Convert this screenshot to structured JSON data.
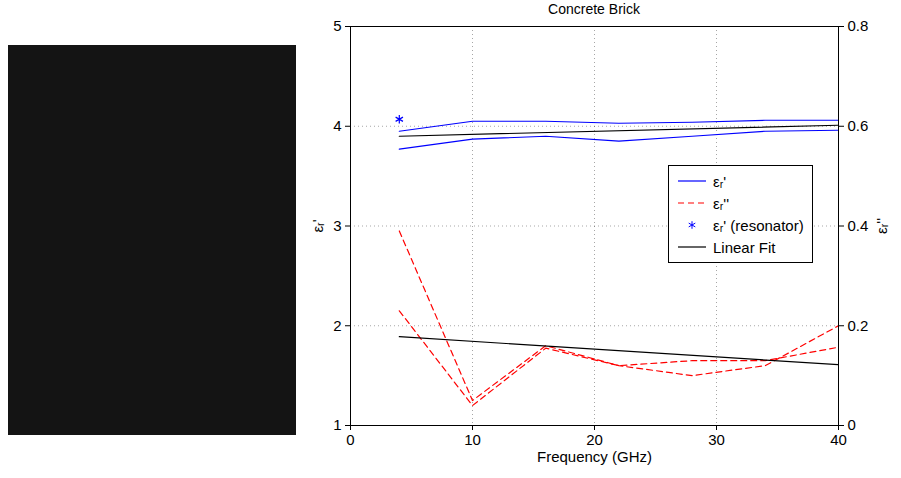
{
  "chart_data": {
    "type": "line",
    "title": "Concrete Brick",
    "x_label": "Frequency (GHz)",
    "y_label": "εᵣ'",
    "y2_label": "εᵣ''",
    "x": [
      4,
      10,
      16,
      22,
      28,
      34,
      40
    ],
    "xlim": [
      0,
      40
    ],
    "xticks": [
      0,
      10,
      20,
      30,
      40
    ],
    "ylim": [
      1,
      5
    ],
    "yticks": [
      1,
      2,
      3,
      4,
      5
    ],
    "y2lim": [
      0,
      0.8
    ],
    "y2ticks": [
      0,
      0.2,
      0.4,
      0.6,
      0.8
    ],
    "grid": true,
    "legend": "right",
    "series": [
      {
        "name": "εᵣ'",
        "color": "#0000ff",
        "line_style": "solid",
        "values": [
          3.95,
          4.05,
          4.05,
          4.03,
          4.04,
          4.06,
          4.06
        ]
      },
      {
        "name": "εᵣ'",
        "color": "#0000ff",
        "line_style": "solid",
        "values": [
          3.77,
          3.87,
          3.9,
          3.85,
          3.9,
          3.95,
          3.96
        ]
      },
      {
        "name": "εᵣ''",
        "color": "#ff0000",
        "line_style": "dashed",
        "axis": "y2",
        "values": [
          0.39,
          0.05,
          0.16,
          0.12,
          0.1,
          0.12,
          0.2
        ]
      },
      {
        "name": "εᵣ''",
        "color": "#ff0000",
        "line_style": "dashed",
        "axis": "y2",
        "values": [
          0.23,
          0.04,
          0.155,
          0.12,
          0.13,
          0.13,
          0.157
        ]
      },
      {
        "name": "εᵣ' (resonator)",
        "type": "scatter",
        "marker": "asterisk",
        "color": "#0000ff",
        "x": [
          4
        ],
        "values": [
          4.07
        ]
      },
      {
        "name": "Linear Fit",
        "color": "#000000",
        "line_style": "solid",
        "x": [
          4,
          40
        ],
        "values": [
          3.9,
          4.01
        ]
      },
      {
        "name": "Linear Fit",
        "color": "#000000",
        "line_style": "solid",
        "axis": "y2",
        "x": [
          4,
          40
        ],
        "values": [
          0.178,
          0.122
        ]
      }
    ]
  }
}
